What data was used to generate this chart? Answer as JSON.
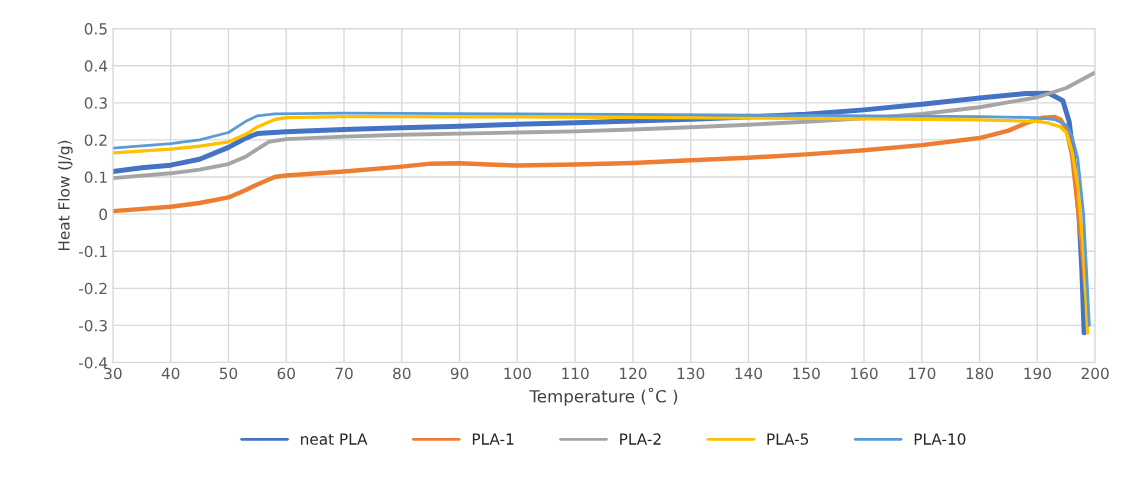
{
  "chart_data": {
    "type": "line",
    "xlabel": "Temperature (˚C )",
    "ylabel": "Heat Flow (J/g)",
    "xlim": [
      30,
      200
    ],
    "xticks": [
      30,
      40,
      50,
      60,
      70,
      80,
      90,
      100,
      110,
      120,
      130,
      140,
      150,
      160,
      170,
      180,
      190,
      200
    ],
    "ylim": [
      -0.4,
      0.5
    ],
    "yticks": [
      {
        "value": -0.4,
        "label": "-0.4"
      },
      {
        "value": -0.3,
        "label": "-0.3"
      },
      {
        "value": -0.2,
        "label": "-0.2"
      },
      {
        "value": -0.1,
        "label": "-0.1"
      },
      0,
      0.1,
      0.2,
      0.3,
      0.4,
      0.5
    ],
    "grid": true,
    "legend": "bottom",
    "marker": "none",
    "line_style": "solid",
    "series": [
      {
        "name": "neat PLA",
        "color": "#4472c4",
        "x": [
          30,
          35,
          40,
          45,
          50,
          53,
          55,
          60,
          70,
          80,
          90,
          100,
          110,
          120,
          130,
          140,
          150,
          160,
          170,
          180,
          188,
          192,
          194.4,
          195.5,
          196.5,
          197.2,
          197.7,
          198.1
        ],
        "values": [
          0.115,
          0.125,
          0.132,
          0.148,
          0.18,
          0.205,
          0.217,
          0.222,
          0.228,
          0.233,
          0.237,
          0.242,
          0.246,
          0.251,
          0.256,
          0.262,
          0.269,
          0.281,
          0.296,
          0.313,
          0.325,
          0.326,
          0.306,
          0.25,
          0.12,
          0.0,
          -0.15,
          -0.32
        ]
      },
      {
        "name": "PLA-1",
        "color": "#ed7d31",
        "x": [
          30,
          40,
          45,
          50,
          53,
          55,
          58,
          60,
          70,
          80,
          85,
          90,
          95,
          100,
          110,
          120,
          130,
          140,
          150,
          160,
          170,
          180,
          185,
          188,
          191,
          193,
          194,
          195,
          196,
          197,
          197.8,
          198.4
        ],
        "values": [
          0.008,
          0.02,
          0.03,
          0.045,
          0.065,
          0.08,
          0.1,
          0.104,
          0.115,
          0.128,
          0.136,
          0.137,
          0.134,
          0.131,
          0.134,
          0.138,
          0.145,
          0.152,
          0.161,
          0.172,
          0.186,
          0.205,
          0.225,
          0.245,
          0.26,
          0.262,
          0.255,
          0.23,
          0.16,
          0.02,
          -0.1,
          -0.21
        ]
      },
      {
        "name": "PLA-2",
        "color": "#a5a5a5",
        "x": [
          30,
          40,
          45,
          50,
          53,
          55,
          57,
          60,
          70,
          80,
          90,
          100,
          110,
          120,
          130,
          140,
          150,
          160,
          170,
          180,
          190,
          195,
          200
        ],
        "values": [
          0.097,
          0.11,
          0.12,
          0.135,
          0.155,
          0.175,
          0.195,
          0.202,
          0.209,
          0.214,
          0.217,
          0.22,
          0.223,
          0.228,
          0.234,
          0.241,
          0.249,
          0.258,
          0.27,
          0.288,
          0.315,
          0.34,
          0.382
        ]
      },
      {
        "name": "PLA-5",
        "color": "#ffc000",
        "x": [
          30,
          40,
          45,
          50,
          53,
          55,
          58,
          60,
          70,
          100,
          150,
          180,
          190,
          192,
          194,
          195,
          196,
          197,
          198,
          198.7
        ],
        "values": [
          0.165,
          0.175,
          0.183,
          0.195,
          0.215,
          0.235,
          0.255,
          0.26,
          0.263,
          0.262,
          0.258,
          0.254,
          0.25,
          0.245,
          0.235,
          0.22,
          0.17,
          0.08,
          -0.1,
          -0.32
        ]
      },
      {
        "name": "PLA-10",
        "color": "#5b9bd5",
        "x": [
          30,
          40,
          45,
          50,
          53,
          55,
          58,
          70,
          100,
          150,
          180,
          190,
          193,
          195,
          196,
          197,
          198,
          198.5,
          199
        ],
        "values": [
          0.178,
          0.19,
          0.2,
          0.22,
          0.25,
          0.265,
          0.27,
          0.272,
          0.27,
          0.266,
          0.263,
          0.26,
          0.255,
          0.24,
          0.21,
          0.15,
          0.0,
          -0.15,
          -0.3
        ]
      }
    ]
  }
}
